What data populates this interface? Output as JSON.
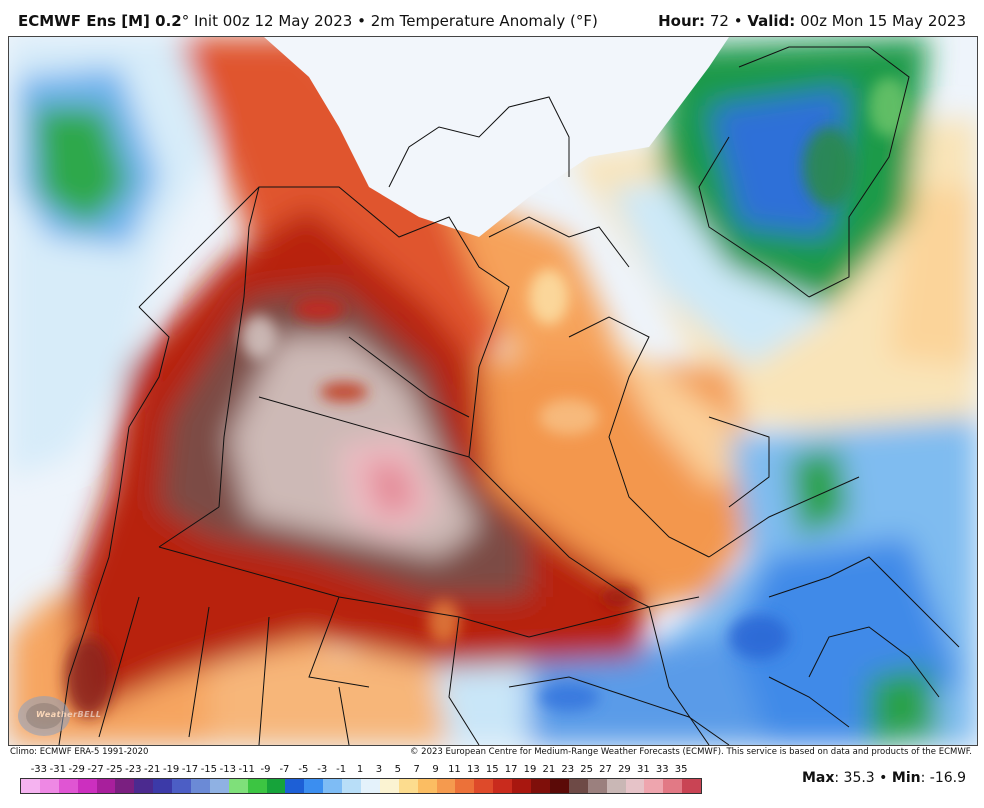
{
  "header": {
    "model": "ECMWF Ens [M] 0.2",
    "degree_symbol": "°",
    "init_text": "Init 00z 12 May 2023",
    "separator": "•",
    "field_text": "2m Temperature Anomaly (°F)",
    "hour_label": "Hour:",
    "hour_value": "72",
    "valid_label": "Valid:",
    "valid_value": "00z Mon 15 May 2023"
  },
  "credits": {
    "climo": "Climo: ECMWF ERA-5 1991-2020",
    "copyright": "© 2023 European Centre for Medium-Range Weather Forecasts (ECMWF). This service is based on data and products of the ECMWF."
  },
  "logo": {
    "text": "WeatherBELL"
  },
  "scale": {
    "labels": [
      "-33",
      "-31",
      "-29",
      "-27",
      "-25",
      "-23",
      "-21",
      "-19",
      "-17",
      "-15",
      "-13",
      "-11",
      "-9",
      "-7",
      "-5",
      "-3",
      "-1",
      "1",
      "3",
      "5",
      "7",
      "9",
      "11",
      "13",
      "15",
      "17",
      "19",
      "21",
      "23",
      "25",
      "27",
      "29",
      "31",
      "33",
      "35"
    ],
    "colors": [
      "#f5b3f0",
      "#ee88e4",
      "#e055d3",
      "#cc2fbf",
      "#a81f9c",
      "#7a1f80",
      "#4b2a8f",
      "#3c3aa8",
      "#4c5ec5",
      "#6b8ad6",
      "#8fb1e3",
      "#7fe07a",
      "#3cc542",
      "#16a33a",
      "#1d5fd6",
      "#3b8ef0",
      "#7ebcf5",
      "#b8def8",
      "#e4f2fb",
      "#fbf3d2",
      "#fcdc8e",
      "#fbbd62",
      "#f59a4e",
      "#ec7139",
      "#de4a2a",
      "#c92b1d",
      "#a8170f",
      "#7f0f0a",
      "#5b0a07",
      "#6e4a46",
      "#9b807e",
      "#c9b7b5",
      "#e6c3c8",
      "#eea5ae",
      "#e27985",
      "#c94454"
    ]
  },
  "stats": {
    "max_label": "Max",
    "max_value": "35.3",
    "separator": "•",
    "min_label": "Min",
    "min_value": "-16.9"
  }
}
